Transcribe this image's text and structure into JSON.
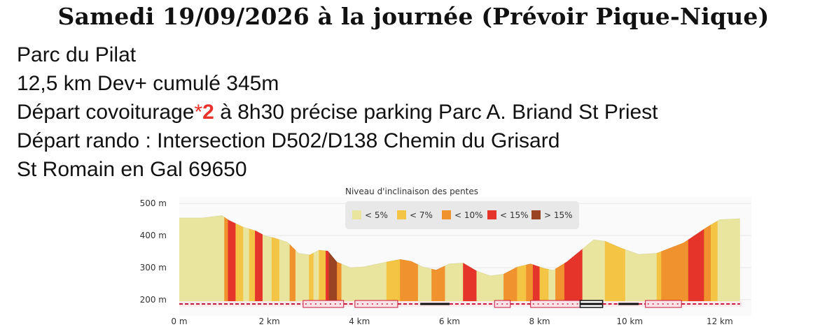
{
  "title": "Samedi 19/09/2026 à la journée (Prévoir Pique-Nique)",
  "info": {
    "line1": "Parc du Pilat",
    "line2": "12,5 km Dev+ cumulé 345m",
    "line3_a": "Départ covoiturage",
    "line3_star": "*",
    "line3_num": "2",
    "line3_b": " à 8h30 précise parking Parc A. Briand St Priest",
    "line4": "Départ rando : Intersection D502/D138 Chemin du Grisard",
    "line5": "St Romain en Gal 69650"
  },
  "chart_data": {
    "type": "area",
    "title": "Niveau d'inclinaison des pentes",
    "legend": {
      "placement": "top-center",
      "items": [
        {
          "label": "< 5%",
          "color": "#e9e59f"
        },
        {
          "label": "< 7%",
          "color": "#f4c444"
        },
        {
          "label": "< 10%",
          "color": "#f0922d"
        },
        {
          "label": "< 15%",
          "color": "#e5352a"
        },
        {
          "label": "> 15%",
          "color": "#9b4421"
        }
      ]
    },
    "x_ticks": [
      {
        "value": 0,
        "label": "0 m"
      },
      {
        "value": 2,
        "label": "2 km"
      },
      {
        "value": 4,
        "label": "4 km"
      },
      {
        "value": 6,
        "label": "6 km"
      },
      {
        "value": 8,
        "label": "8 km"
      },
      {
        "value": 10,
        "label": "10 km"
      },
      {
        "value": 12,
        "label": "12 km"
      }
    ],
    "y_ticks": [
      {
        "value": 200,
        "label": "200 m"
      },
      {
        "value": 300,
        "label": "300 m"
      },
      {
        "value": 400,
        "label": "400 m"
      },
      {
        "value": 500,
        "label": "500 m"
      }
    ],
    "xlim": [
      0,
      12.5
    ],
    "ylim": [
      180,
      520
    ],
    "grid": true,
    "profile": [
      {
        "x": 0,
        "y": 455
      },
      {
        "x": 0.5,
        "y": 455
      },
      {
        "x": 0.95,
        "y": 463
      },
      {
        "x": 1.1,
        "y": 448
      },
      {
        "x": 1.4,
        "y": 428
      },
      {
        "x": 1.7,
        "y": 415
      },
      {
        "x": 1.9,
        "y": 400
      },
      {
        "x": 2.1,
        "y": 393
      },
      {
        "x": 2.4,
        "y": 380
      },
      {
        "x": 2.65,
        "y": 345
      },
      {
        "x": 2.9,
        "y": 340
      },
      {
        "x": 3.1,
        "y": 355
      },
      {
        "x": 3.3,
        "y": 352
      },
      {
        "x": 3.5,
        "y": 318
      },
      {
        "x": 3.8,
        "y": 300
      },
      {
        "x": 4.1,
        "y": 303
      },
      {
        "x": 4.6,
        "y": 318
      },
      {
        "x": 4.9,
        "y": 326
      },
      {
        "x": 5.15,
        "y": 320
      },
      {
        "x": 5.4,
        "y": 303
      },
      {
        "x": 5.7,
        "y": 293
      },
      {
        "x": 6.0,
        "y": 312
      },
      {
        "x": 6.3,
        "y": 315
      },
      {
        "x": 6.6,
        "y": 290
      },
      {
        "x": 6.9,
        "y": 275
      },
      {
        "x": 7.2,
        "y": 280
      },
      {
        "x": 7.5,
        "y": 302
      },
      {
        "x": 7.8,
        "y": 312
      },
      {
        "x": 8.1,
        "y": 298
      },
      {
        "x": 8.3,
        "y": 292
      },
      {
        "x": 8.6,
        "y": 318
      },
      {
        "x": 8.95,
        "y": 358
      },
      {
        "x": 9.2,
        "y": 387
      },
      {
        "x": 9.45,
        "y": 383
      },
      {
        "x": 9.8,
        "y": 362
      },
      {
        "x": 10.2,
        "y": 342
      },
      {
        "x": 10.6,
        "y": 345
      },
      {
        "x": 11.2,
        "y": 378
      },
      {
        "x": 11.7,
        "y": 425
      },
      {
        "x": 12.0,
        "y": 450
      },
      {
        "x": 12.45,
        "y": 453
      }
    ],
    "slope_segments": [
      {
        "from": 0,
        "to": 1.0,
        "color": "#e9e59f"
      },
      {
        "from": 1.0,
        "to": 1.08,
        "color": "#f0922d"
      },
      {
        "from": 1.08,
        "to": 1.25,
        "color": "#e5352a"
      },
      {
        "from": 1.25,
        "to": 1.42,
        "color": "#f4c444"
      },
      {
        "from": 1.42,
        "to": 1.55,
        "color": "#e9e59f"
      },
      {
        "from": 1.55,
        "to": 1.68,
        "color": "#f4c444"
      },
      {
        "from": 1.68,
        "to": 1.85,
        "color": "#e5352a"
      },
      {
        "from": 1.85,
        "to": 2.05,
        "color": "#e9e59f"
      },
      {
        "from": 2.05,
        "to": 2.22,
        "color": "#f4c444"
      },
      {
        "from": 2.22,
        "to": 2.45,
        "color": "#e9e59f"
      },
      {
        "from": 2.45,
        "to": 2.58,
        "color": "#f0922d"
      },
      {
        "from": 2.58,
        "to": 2.88,
        "color": "#e9e59f"
      },
      {
        "from": 2.88,
        "to": 2.98,
        "color": "#f4c444"
      },
      {
        "from": 2.98,
        "to": 3.1,
        "color": "#e9e59f"
      },
      {
        "from": 3.1,
        "to": 3.25,
        "color": "#f4c444"
      },
      {
        "from": 3.25,
        "to": 3.32,
        "color": "#e5352a"
      },
      {
        "from": 3.32,
        "to": 3.5,
        "color": "#9b4421"
      },
      {
        "from": 3.5,
        "to": 3.6,
        "color": "#f0922d"
      },
      {
        "from": 3.6,
        "to": 4.6,
        "color": "#e9e59f"
      },
      {
        "from": 4.6,
        "to": 4.9,
        "color": "#f4c444"
      },
      {
        "from": 4.9,
        "to": 5.3,
        "color": "#f0922d"
      },
      {
        "from": 5.3,
        "to": 5.6,
        "color": "#e9e59f"
      },
      {
        "from": 5.6,
        "to": 5.9,
        "color": "#f0922d"
      },
      {
        "from": 5.9,
        "to": 6.3,
        "color": "#e9e59f"
      },
      {
        "from": 6.3,
        "to": 6.6,
        "color": "#e5352a"
      },
      {
        "from": 6.6,
        "to": 7.2,
        "color": "#e9e59f"
      },
      {
        "from": 7.2,
        "to": 7.5,
        "color": "#f0922d"
      },
      {
        "from": 7.5,
        "to": 7.7,
        "color": "#f4c444"
      },
      {
        "from": 7.7,
        "to": 7.85,
        "color": "#f0922d"
      },
      {
        "from": 7.85,
        "to": 8.0,
        "color": "#e5352a"
      },
      {
        "from": 8.0,
        "to": 8.2,
        "color": "#f4c444"
      },
      {
        "from": 8.2,
        "to": 8.35,
        "color": "#e9e59f"
      },
      {
        "from": 8.35,
        "to": 8.55,
        "color": "#f0922d"
      },
      {
        "from": 8.55,
        "to": 8.95,
        "color": "#e5352a"
      },
      {
        "from": 8.95,
        "to": 9.45,
        "color": "#e9e59f"
      },
      {
        "from": 9.45,
        "to": 9.9,
        "color": "#f4c444"
      },
      {
        "from": 9.9,
        "to": 10.6,
        "color": "#e9e59f"
      },
      {
        "from": 10.6,
        "to": 10.7,
        "color": "#f4c444"
      },
      {
        "from": 10.7,
        "to": 11.3,
        "color": "#f0922d"
      },
      {
        "from": 11.3,
        "to": 11.65,
        "color": "#e5352a"
      },
      {
        "from": 11.65,
        "to": 11.8,
        "color": "#f0922d"
      },
      {
        "from": 11.8,
        "to": 11.95,
        "color": "#f4c444"
      },
      {
        "from": 11.95,
        "to": 12.45,
        "color": "#e9e59f"
      }
    ],
    "track_segments": [
      {
        "from": 0,
        "to": 2.75,
        "style": "dashed"
      },
      {
        "from": 2.75,
        "to": 3.65,
        "style": "pink-box"
      },
      {
        "from": 3.65,
        "to": 3.9,
        "style": "dashed"
      },
      {
        "from": 3.9,
        "to": 4.85,
        "style": "pink-box"
      },
      {
        "from": 4.85,
        "to": 5.35,
        "style": "dashed"
      },
      {
        "from": 5.35,
        "to": 6.0,
        "style": "black"
      },
      {
        "from": 6.0,
        "to": 7.0,
        "style": "dashed"
      },
      {
        "from": 7.0,
        "to": 7.35,
        "style": "pink-box"
      },
      {
        "from": 7.35,
        "to": 7.8,
        "style": "dashed"
      },
      {
        "from": 7.8,
        "to": 8.9,
        "style": "pink-box"
      },
      {
        "from": 8.9,
        "to": 9.4,
        "style": "black-box"
      },
      {
        "from": 9.4,
        "to": 9.75,
        "style": "dashed"
      },
      {
        "from": 9.75,
        "to": 10.2,
        "style": "black"
      },
      {
        "from": 10.2,
        "to": 10.35,
        "style": "dashed"
      },
      {
        "from": 10.35,
        "to": 11.15,
        "style": "pink-box"
      },
      {
        "from": 11.15,
        "to": 12.45,
        "style": "dashed"
      }
    ]
  }
}
